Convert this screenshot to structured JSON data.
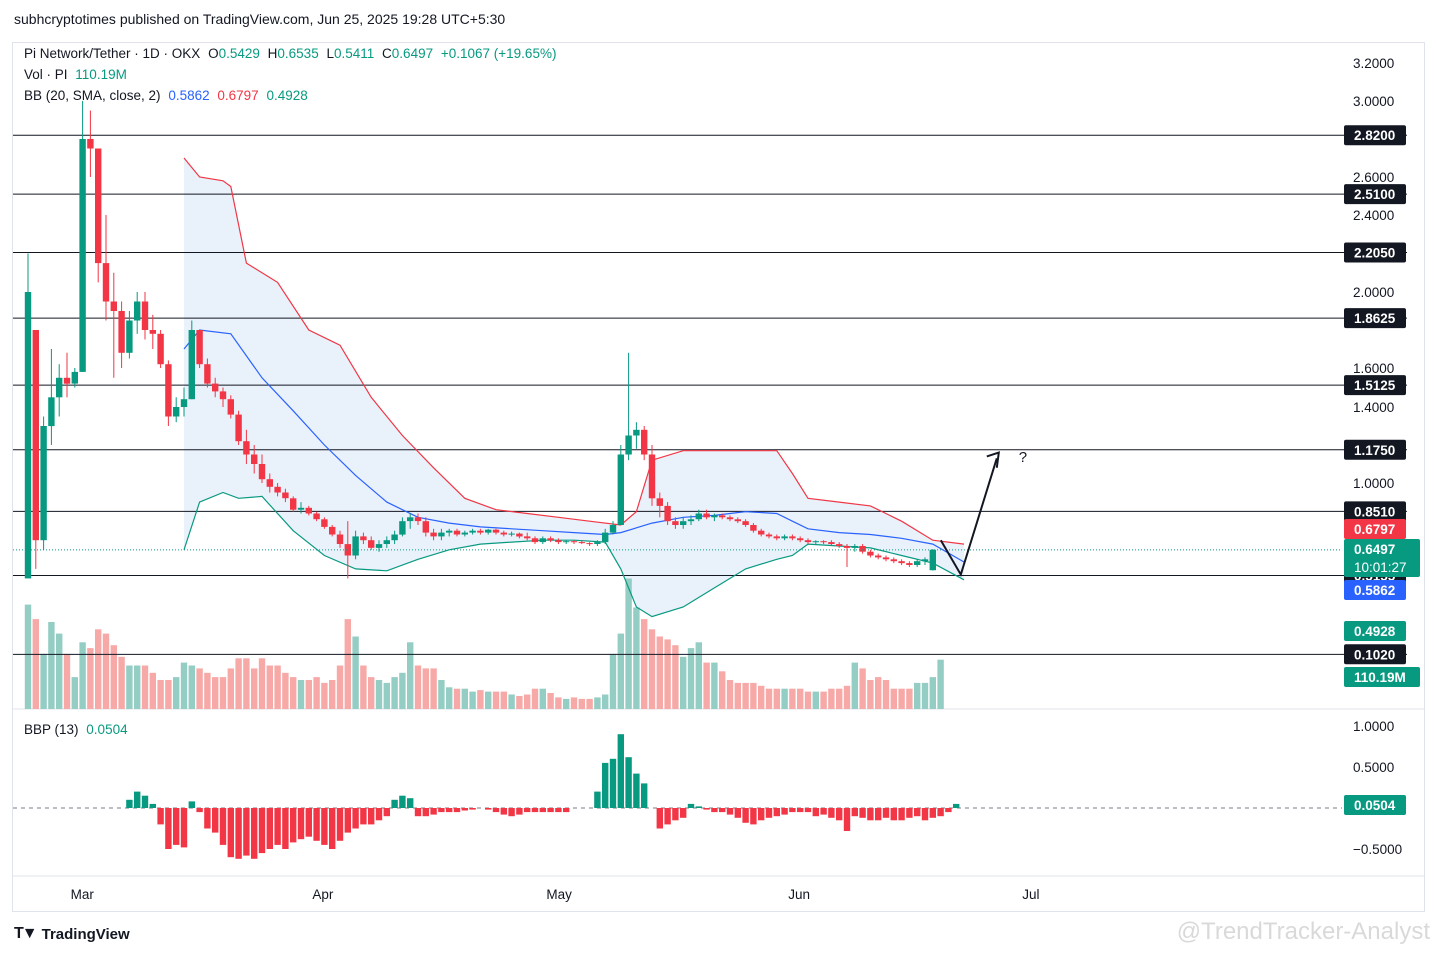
{
  "header": {
    "published_line": "subhcryptotimes published on TradingView.com, Jun 25, 2025 19:28 UTC+5:30"
  },
  "legend": {
    "symbol": "Pi Network/Tether · 1D · OKX",
    "o_label": "O",
    "o_value": "0.5429",
    "h_label": "H",
    "h_value": "0.6535",
    "l_label": "L",
    "l_value": "0.5411",
    "c_label": "C",
    "c_value": "0.6497",
    "change": "+0.1067 (+19.65%)",
    "vol_label": "Vol · PI",
    "vol_value": "110.19M",
    "bb_label": "BB (20, SMA, close, 2)",
    "bb_basis": "0.5862",
    "bb_upper": "0.6797",
    "bb_lower": "0.4928",
    "bbp_label": "BBP (13)",
    "bbp_value": "0.0504"
  },
  "footer": {
    "brand": "TradingView",
    "watermark": "@TrendTracker-Analyst"
  },
  "colors": {
    "up": "#089981",
    "down": "#f23645",
    "up_vol": "#93cdc4",
    "down_vol": "#f7a9a7",
    "bb_basis": "#2962ff",
    "bb_upper": "#f23645",
    "bb_lower": "#089981",
    "bb_fill": "#e9f1fb"
  },
  "chart_data": {
    "type": "candlestick",
    "price_axis": {
      "ticks": [
        "3.2000",
        "3.0000",
        "2.6000",
        "2.4000",
        "2.0000",
        "1.6000",
        "1.4000",
        "1.0000"
      ],
      "tick_values": [
        3.2,
        3.0,
        2.6,
        2.4,
        2.0,
        1.6,
        1.4,
        1.0
      ]
    },
    "x_axis": {
      "month_labels": [
        "Mar",
        "Apr",
        "May",
        "Jun",
        "Jul"
      ],
      "month_day_index": [
        7,
        38,
        68,
        99,
        129
      ]
    },
    "horizontal_levels": [
      {
        "label": "2.8200",
        "value": 2.82
      },
      {
        "label": "2.5100",
        "value": 2.51
      },
      {
        "label": "2.2050",
        "value": 2.205
      },
      {
        "label": "1.8625",
        "value": 1.8625
      },
      {
        "label": "1.5125",
        "value": 1.5125
      },
      {
        "label": "1.1750",
        "value": 1.175
      },
      {
        "label": "0.8510",
        "value": 0.851
      },
      {
        "label": "0.5155",
        "value": 0.5155
      },
      {
        "label": "0.1020",
        "value": 0.102
      }
    ],
    "price_labels": [
      {
        "label": "0.6797",
        "value": 0.6797,
        "color": "#f23645"
      },
      {
        "label": "0.6497",
        "sub": "10:01:27",
        "value": 0.6497,
        "color": "#089981"
      },
      {
        "label": "0.5862",
        "value": 0.5862,
        "color": "#2962ff"
      },
      {
        "label": "0.4928",
        "value": 0.4928,
        "color": "#089981"
      },
      {
        "label": "110.19M",
        "value": 0.0,
        "color": "#089981"
      }
    ],
    "candles": [
      [
        0.5,
        2.2,
        0.5,
        2.0
      ],
      [
        1.8,
        1.8,
        0.55,
        0.7
      ],
      [
        0.7,
        1.35,
        0.65,
        1.3
      ],
      [
        1.3,
        1.7,
        1.2,
        1.45
      ],
      [
        1.45,
        1.62,
        1.35,
        1.55
      ],
      [
        1.55,
        1.68,
        1.45,
        1.52
      ],
      [
        1.52,
        1.6,
        1.5,
        1.58
      ],
      [
        1.58,
        3.0,
        1.58,
        2.8
      ],
      [
        2.8,
        2.95,
        2.6,
        2.75
      ],
      [
        2.75,
        2.75,
        2.05,
        2.15
      ],
      [
        2.15,
        2.4,
        1.85,
        1.95
      ],
      [
        1.95,
        2.1,
        1.55,
        1.9
      ],
      [
        1.9,
        1.95,
        1.6,
        1.68
      ],
      [
        1.68,
        1.9,
        1.65,
        1.85
      ],
      [
        1.85,
        2.0,
        1.78,
        1.95
      ],
      [
        1.95,
        2.0,
        1.75,
        1.8
      ],
      [
        1.8,
        1.88,
        1.7,
        1.78
      ],
      [
        1.78,
        1.8,
        1.6,
        1.62
      ],
      [
        1.62,
        1.64,
        1.3,
        1.35
      ],
      [
        1.35,
        1.45,
        1.32,
        1.4
      ],
      [
        1.4,
        1.5,
        1.35,
        1.44
      ],
      [
        1.44,
        1.85,
        1.44,
        1.8
      ],
      [
        1.8,
        1.8,
        1.6,
        1.62
      ],
      [
        1.62,
        1.65,
        1.5,
        1.52
      ],
      [
        1.52,
        1.55,
        1.45,
        1.48
      ],
      [
        1.48,
        1.5,
        1.4,
        1.44
      ],
      [
        1.44,
        1.46,
        1.34,
        1.36
      ],
      [
        1.36,
        1.38,
        1.2,
        1.22
      ],
      [
        1.22,
        1.28,
        1.1,
        1.15
      ],
      [
        1.15,
        1.2,
        1.05,
        1.1
      ],
      [
        1.1,
        1.15,
        1.0,
        1.02
      ],
      [
        1.02,
        1.05,
        0.95,
        0.98
      ],
      [
        0.98,
        1.0,
        0.93,
        0.95
      ],
      [
        0.95,
        0.97,
        0.9,
        0.92
      ],
      [
        0.92,
        0.93,
        0.85,
        0.86
      ],
      [
        0.86,
        0.9,
        0.84,
        0.87
      ],
      [
        0.87,
        0.88,
        0.83,
        0.84
      ],
      [
        0.84,
        0.85,
        0.8,
        0.81
      ],
      [
        0.81,
        0.82,
        0.76,
        0.77
      ],
      [
        0.77,
        0.78,
        0.72,
        0.73
      ],
      [
        0.73,
        0.75,
        0.66,
        0.68
      ],
      [
        0.68,
        0.8,
        0.5,
        0.62
      ],
      [
        0.62,
        0.75,
        0.6,
        0.72
      ],
      [
        0.72,
        0.74,
        0.68,
        0.7
      ],
      [
        0.7,
        0.72,
        0.65,
        0.66
      ],
      [
        0.66,
        0.7,
        0.64,
        0.68
      ],
      [
        0.68,
        0.72,
        0.66,
        0.7
      ],
      [
        0.7,
        0.75,
        0.68,
        0.73
      ],
      [
        0.73,
        0.82,
        0.72,
        0.8
      ],
      [
        0.8,
        0.84,
        0.76,
        0.82
      ],
      [
        0.82,
        0.84,
        0.78,
        0.8
      ],
      [
        0.8,
        0.82,
        0.72,
        0.74
      ],
      [
        0.74,
        0.76,
        0.7,
        0.72
      ],
      [
        0.72,
        0.76,
        0.7,
        0.74
      ],
      [
        0.74,
        0.76,
        0.72,
        0.75
      ],
      [
        0.75,
        0.76,
        0.72,
        0.73
      ],
      [
        0.73,
        0.75,
        0.72,
        0.74
      ],
      [
        0.74,
        0.76,
        0.73,
        0.75
      ],
      [
        0.75,
        0.76,
        0.73,
        0.74
      ],
      [
        0.74,
        0.76,
        0.73,
        0.755
      ],
      [
        0.755,
        0.76,
        0.73,
        0.74
      ],
      [
        0.74,
        0.75,
        0.72,
        0.73
      ],
      [
        0.73,
        0.745,
        0.72,
        0.735
      ],
      [
        0.735,
        0.74,
        0.71,
        0.72
      ],
      [
        0.72,
        0.74,
        0.7,
        0.71
      ],
      [
        0.71,
        0.72,
        0.68,
        0.69
      ],
      [
        0.69,
        0.72,
        0.68,
        0.71
      ],
      [
        0.71,
        0.72,
        0.69,
        0.7
      ],
      [
        0.7,
        0.71,
        0.68,
        0.69
      ],
      [
        0.69,
        0.7,
        0.68,
        0.695
      ],
      [
        0.695,
        0.7,
        0.68,
        0.69
      ],
      [
        0.69,
        0.7,
        0.68,
        0.685
      ],
      [
        0.685,
        0.69,
        0.67,
        0.68
      ],
      [
        0.68,
        0.7,
        0.67,
        0.69
      ],
      [
        0.69,
        0.76,
        0.68,
        0.74
      ],
      [
        0.74,
        0.8,
        0.73,
        0.78
      ],
      [
        0.78,
        1.2,
        0.78,
        1.15
      ],
      [
        1.15,
        1.68,
        1.12,
        1.25
      ],
      [
        1.25,
        1.32,
        1.18,
        1.28
      ],
      [
        1.28,
        1.3,
        1.12,
        1.15
      ],
      [
        1.15,
        1.2,
        0.88,
        0.92
      ],
      [
        0.92,
        0.95,
        0.82,
        0.88
      ],
      [
        0.88,
        0.9,
        0.78,
        0.8
      ],
      [
        0.8,
        0.82,
        0.76,
        0.78
      ],
      [
        0.78,
        0.82,
        0.76,
        0.8
      ],
      [
        0.8,
        0.83,
        0.78,
        0.81
      ],
      [
        0.81,
        0.86,
        0.8,
        0.84
      ],
      [
        0.84,
        0.86,
        0.81,
        0.82
      ],
      [
        0.82,
        0.84,
        0.8,
        0.83
      ],
      [
        0.83,
        0.84,
        0.81,
        0.82
      ],
      [
        0.82,
        0.83,
        0.8,
        0.81
      ],
      [
        0.81,
        0.82,
        0.79,
        0.8
      ],
      [
        0.8,
        0.81,
        0.77,
        0.78
      ],
      [
        0.78,
        0.79,
        0.74,
        0.75
      ],
      [
        0.75,
        0.76,
        0.72,
        0.73
      ],
      [
        0.73,
        0.74,
        0.71,
        0.72
      ],
      [
        0.72,
        0.73,
        0.7,
        0.71
      ],
      [
        0.71,
        0.73,
        0.7,
        0.72
      ],
      [
        0.72,
        0.73,
        0.7,
        0.71
      ],
      [
        0.71,
        0.72,
        0.69,
        0.7
      ],
      [
        0.7,
        0.71,
        0.68,
        0.69
      ],
      [
        0.69,
        0.7,
        0.68,
        0.695
      ],
      [
        0.695,
        0.7,
        0.68,
        0.69
      ],
      [
        0.69,
        0.7,
        0.67,
        0.68
      ],
      [
        0.68,
        0.69,
        0.66,
        0.67
      ],
      [
        0.67,
        0.68,
        0.56,
        0.66
      ],
      [
        0.66,
        0.68,
        0.64,
        0.67
      ],
      [
        0.67,
        0.68,
        0.63,
        0.64
      ],
      [
        0.64,
        0.65,
        0.61,
        0.62
      ],
      [
        0.62,
        0.63,
        0.6,
        0.61
      ],
      [
        0.61,
        0.62,
        0.59,
        0.6
      ],
      [
        0.6,
        0.61,
        0.58,
        0.59
      ],
      [
        0.59,
        0.6,
        0.57,
        0.58
      ],
      [
        0.58,
        0.59,
        0.56,
        0.57
      ],
      [
        0.57,
        0.6,
        0.56,
        0.59
      ],
      [
        0.59,
        0.61,
        0.57,
        0.6
      ],
      [
        0.5429,
        0.6535,
        0.5411,
        0.6497
      ]
    ],
    "bb_upper": [
      [
        20,
        2.7
      ],
      [
        22,
        2.6
      ],
      [
        25,
        2.58
      ],
      [
        26,
        2.55
      ],
      [
        28,
        2.15
      ],
      [
        32,
        2.05
      ],
      [
        36,
        1.8
      ],
      [
        40,
        1.72
      ],
      [
        44,
        1.45
      ],
      [
        48,
        1.25
      ],
      [
        52,
        1.08
      ],
      [
        56,
        0.92
      ],
      [
        60,
        0.86
      ],
      [
        64,
        0.84
      ],
      [
        68,
        0.82
      ],
      [
        72,
        0.8
      ],
      [
        76,
        0.78
      ],
      [
        78,
        0.85
      ],
      [
        80,
        1.12
      ],
      [
        84,
        1.17
      ],
      [
        88,
        1.17
      ],
      [
        92,
        1.17
      ],
      [
        96,
        1.17
      ],
      [
        98,
        1.05
      ],
      [
        100,
        0.92
      ],
      [
        104,
        0.9
      ],
      [
        108,
        0.88
      ],
      [
        112,
        0.8
      ],
      [
        116,
        0.7
      ],
      [
        120,
        0.68
      ]
    ],
    "bb_basis": [
      [
        20,
        1.7
      ],
      [
        22,
        1.8
      ],
      [
        26,
        1.78
      ],
      [
        30,
        1.55
      ],
      [
        34,
        1.38
      ],
      [
        38,
        1.2
      ],
      [
        42,
        1.04
      ],
      [
        46,
        0.9
      ],
      [
        50,
        0.82
      ],
      [
        54,
        0.79
      ],
      [
        58,
        0.77
      ],
      [
        62,
        0.76
      ],
      [
        66,
        0.75
      ],
      [
        70,
        0.74
      ],
      [
        74,
        0.73
      ],
      [
        76,
        0.74
      ],
      [
        80,
        0.79
      ],
      [
        84,
        0.82
      ],
      [
        88,
        0.83
      ],
      [
        92,
        0.85
      ],
      [
        96,
        0.84
      ],
      [
        98,
        0.8
      ],
      [
        100,
        0.76
      ],
      [
        104,
        0.74
      ],
      [
        108,
        0.73
      ],
      [
        112,
        0.71
      ],
      [
        116,
        0.68
      ],
      [
        120,
        0.5862
      ]
    ],
    "bb_lower": [
      [
        20,
        0.65
      ],
      [
        22,
        0.9
      ],
      [
        25,
        0.95
      ],
      [
        27,
        0.92
      ],
      [
        30,
        0.93
      ],
      [
        34,
        0.75
      ],
      [
        38,
        0.62
      ],
      [
        42,
        0.55
      ],
      [
        46,
        0.54
      ],
      [
        50,
        0.6
      ],
      [
        54,
        0.65
      ],
      [
        58,
        0.68
      ],
      [
        62,
        0.69
      ],
      [
        66,
        0.7
      ],
      [
        70,
        0.7
      ],
      [
        74,
        0.69
      ],
      [
        76,
        0.55
      ],
      [
        78,
        0.35
      ],
      [
        80,
        0.3
      ],
      [
        84,
        0.35
      ],
      [
        88,
        0.45
      ],
      [
        92,
        0.55
      ],
      [
        96,
        0.6
      ],
      [
        98,
        0.62
      ],
      [
        100,
        0.68
      ],
      [
        104,
        0.67
      ],
      [
        108,
        0.66
      ],
      [
        112,
        0.62
      ],
      [
        116,
        0.58
      ],
      [
        120,
        0.4928
      ]
    ],
    "volume": [
      72,
      62,
      38,
      60,
      52,
      38,
      22,
      46,
      42,
      55,
      52,
      44,
      36,
      30,
      30,
      30,
      25,
      20,
      20,
      22,
      32,
      30,
      28,
      25,
      22,
      22,
      28,
      35,
      35,
      28,
      35,
      30,
      30,
      25,
      22,
      20,
      20,
      22,
      18,
      20,
      30,
      62,
      50,
      30,
      22,
      20,
      18,
      22,
      25,
      46,
      30,
      28,
      28,
      20,
      15,
      14,
      14,
      12,
      13,
      12,
      12,
      12,
      10,
      9,
      10,
      14,
      14,
      11,
      8,
      7,
      8,
      7,
      7,
      8,
      10,
      38,
      52,
      90,
      70,
      62,
      55,
      50,
      48,
      44,
      36,
      42,
      46,
      32,
      32,
      26,
      20,
      18,
      18,
      18,
      16,
      14,
      14,
      14,
      14,
      14,
      12,
      12,
      12,
      14,
      14,
      16,
      32,
      28,
      20,
      22,
      20,
      14,
      14,
      14,
      18,
      18,
      22,
      34
    ],
    "bbp": [
      0.0,
      0.0,
      0.0,
      0.0,
      0.0,
      0.0,
      0.0,
      0.0,
      0.0,
      0.0,
      0.0,
      0.0,
      0.0,
      0.1,
      0.2,
      0.15,
      0.05,
      -0.2,
      -0.5,
      -0.45,
      -0.48,
      0.08,
      -0.05,
      -0.25,
      -0.3,
      -0.45,
      -0.6,
      -0.62,
      -0.58,
      -0.62,
      -0.55,
      -0.5,
      -0.45,
      -0.5,
      -0.42,
      -0.38,
      -0.35,
      -0.4,
      -0.45,
      -0.5,
      -0.4,
      -0.3,
      -0.25,
      -0.2,
      -0.2,
      -0.15,
      -0.1,
      0.1,
      0.15,
      0.12,
      -0.1,
      -0.1,
      -0.08,
      -0.05,
      -0.05,
      -0.05,
      -0.03,
      -0.02,
      0.0,
      -0.02,
      -0.05,
      -0.08,
      -0.1,
      -0.08,
      -0.05,
      -0.05,
      -0.05,
      -0.05,
      -0.05,
      -0.05,
      0.0,
      0.0,
      0.0,
      0.2,
      0.55,
      0.6,
      0.9,
      0.62,
      0.42,
      0.3,
      0.0,
      -0.25,
      -0.2,
      -0.15,
      -0.12,
      0.05,
      0.02,
      -0.02,
      -0.05,
      -0.05,
      -0.08,
      -0.12,
      -0.18,
      -0.2,
      -0.15,
      -0.12,
      -0.1,
      -0.08,
      -0.05,
      -0.05,
      -0.05,
      -0.1,
      -0.08,
      -0.12,
      -0.15,
      -0.28,
      -0.1,
      -0.12,
      -0.15,
      -0.15,
      -0.12,
      -0.15,
      -0.15,
      -0.12,
      -0.1,
      -0.15,
      -0.12,
      -0.1,
      -0.05,
      0.0504
    ],
    "bbp_axis": {
      "ticks": [
        "1.0000",
        "0.5000",
        "−0.5000"
      ],
      "tick_values": [
        1.0,
        0.5,
        -0.5
      ],
      "current_label": "0.0504"
    },
    "annotation": {
      "text": "?"
    }
  }
}
